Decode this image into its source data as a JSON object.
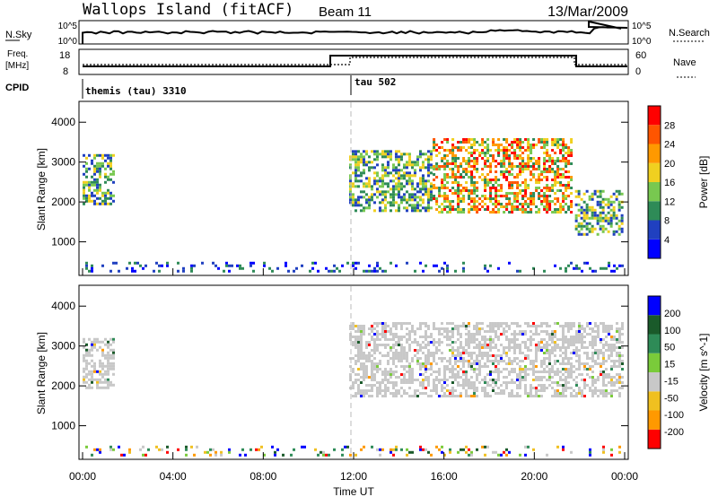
{
  "header": {
    "station": "Wallops Island (fitACF)",
    "beam": "Beam 11",
    "date": "13/Mar/2009"
  },
  "top_panels": {
    "nsky_label": "N.Sky",
    "nsky_ticks": [
      "10^5",
      "10^0"
    ],
    "nsearch_label": "N.Search",
    "nsearch_ticks": [
      "10^5",
      "10^0"
    ],
    "freq_label": "Freq.",
    "freq_unit": "[MHz]",
    "freq_ticks": [
      "18",
      "8"
    ],
    "nave_label": "Nave",
    "nave_ticks": [
      "60",
      "0"
    ],
    "cpid_label": "CPID",
    "cpid_segments": [
      {
        "label": "themis (tau) 3310",
        "start_hour": 0
      },
      {
        "label": "tau 502",
        "start_hour": 12
      }
    ]
  },
  "x_axis": {
    "label": "Time UT",
    "ticks": [
      "00:00",
      "04:00",
      "08:00",
      "12:00",
      "16:00",
      "20:00",
      "00:00"
    ]
  },
  "chart_data": [
    {
      "type": "heatmap",
      "panel": "power",
      "xlabel": "Time UT",
      "xlim": [
        0,
        24
      ],
      "ylabel": "Slant Range [km]",
      "ylim": [
        180,
        4500
      ],
      "yticks": [
        "1000",
        "2000",
        "3000",
        "4000"
      ],
      "colorbar": {
        "label": "Power [dB]",
        "tick_labels": [
          "4",
          "8",
          "12",
          "16",
          "20",
          "24",
          "28"
        ],
        "range": [
          0,
          30
        ]
      },
      "regions": [
        {
          "t0": 0.0,
          "t1": 1.5,
          "r0": 1900,
          "r1": 3200,
          "level": "medium"
        },
        {
          "t0": 11.8,
          "t1": 15.5,
          "r0": 1700,
          "r1": 3300,
          "level": "medium"
        },
        {
          "t0": 15.5,
          "t1": 21.8,
          "r0": 1700,
          "r1": 3600,
          "level": "high"
        },
        {
          "t0": 21.8,
          "t1": 24.0,
          "r0": 1100,
          "r1": 2300,
          "level": "medium"
        },
        {
          "t0": 0.0,
          "t1": 24.0,
          "r0": 180,
          "r1": 500,
          "level": "low"
        }
      ]
    },
    {
      "type": "heatmap",
      "panel": "velocity",
      "xlabel": "Time UT",
      "xlim": [
        0,
        24
      ],
      "ylabel": "Slant Range [km]",
      "ylim": [
        180,
        4500
      ],
      "yticks": [
        "1000",
        "2000",
        "3000",
        "4000"
      ],
      "colorbar": {
        "label": "Velocity [m s^-1]",
        "tick_labels": [
          "200",
          "100",
          "50",
          "15",
          "-15",
          "-50",
          "-100",
          "-200"
        ],
        "range": [
          -250,
          250
        ]
      },
      "regions": [
        {
          "t0": 0.0,
          "t1": 1.5,
          "r0": 1900,
          "r1": 3200,
          "level": "near-zero"
        },
        {
          "t0": 11.8,
          "t1": 24.0,
          "r0": 1700,
          "r1": 3600,
          "level": "near-zero"
        },
        {
          "t0": 0.0,
          "t1": 24.0,
          "r0": 180,
          "r1": 500,
          "level": "mixed"
        }
      ]
    }
  ],
  "colors": {
    "power_scale": [
      "#0000ff",
      "#2040c0",
      "#2e8b57",
      "#78c850",
      "#f0d020",
      "#ff9900",
      "#ff5500",
      "#ff0000"
    ],
    "velocity_scale": [
      "#0000ff",
      "#1a5a2a",
      "#2e8b57",
      "#7acb3a",
      "#c8c8c8",
      "#f0c020",
      "#ff9900",
      "#ff0000"
    ],
    "ground_scatter": "#c8c8c8",
    "dashed_marker": "#bbbbbb"
  }
}
